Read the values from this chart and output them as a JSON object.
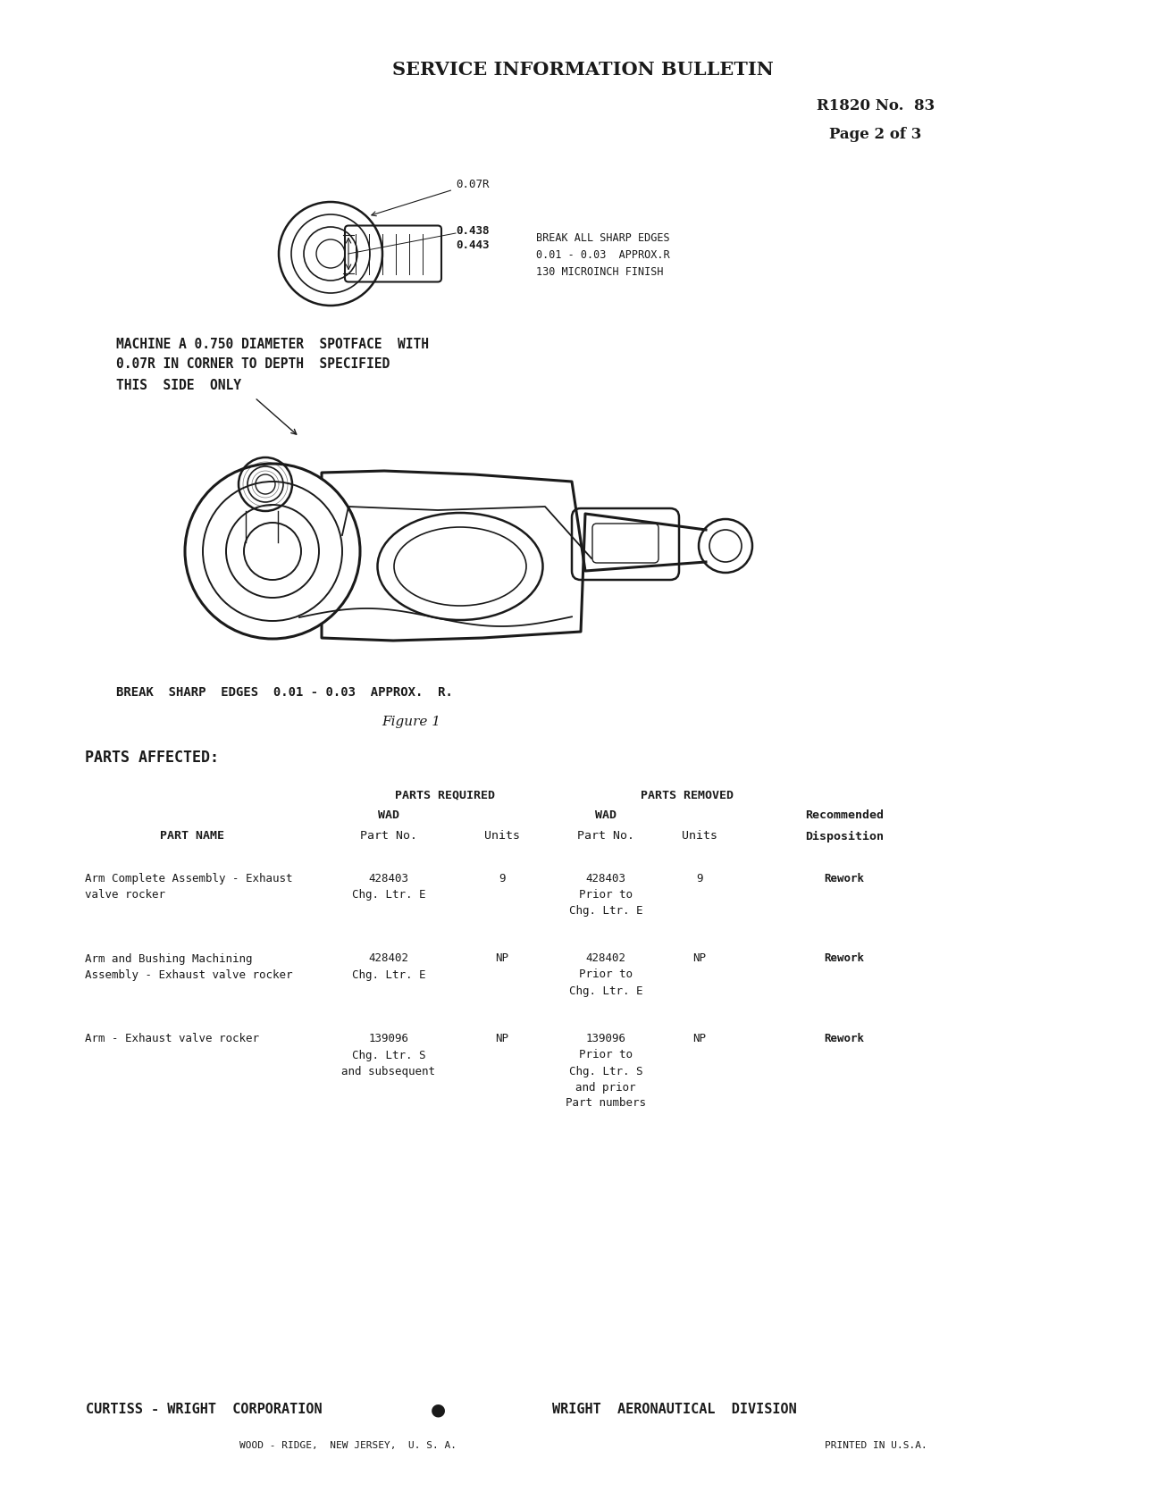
{
  "bg_color": "#ffffff",
  "text_color": "#1a1a1a",
  "title": "SERVICE INFORMATION BULLETIN",
  "bulletin_number": "R1820 No.  83",
  "page_info": "Page 2 of 3",
  "machine_note_line1": "MACHINE A 0.750 DIAMETER  SPOTFACE  WITH",
  "machine_note_line2": "0.07R IN CORNER TO DEPTH  SPECIFIED",
  "this_side": "THIS  SIDE  ONLY",
  "break_edges_bottom": "BREAK  SHARP  EDGES  0.01 - 0.03  APPROX.  R.",
  "figure_label": "Figure 1",
  "parts_affected_header": "PARTS AFFECTED:",
  "col_headers": {
    "parts_required": "PARTS REQUIRED",
    "wad_req": "WAD",
    "part_no_req": "Part No.",
    "units_req": "Units",
    "parts_removed": "PARTS REMOVED",
    "wad_rem": "WAD",
    "part_no_rem": "Part No.",
    "units_rem": "Units",
    "recommended": "Recommended",
    "disposition": "Disposition",
    "part_name": "PART NAME"
  },
  "dim_07r": "0.07R",
  "dim_438": "0.438",
  "dim_443": "0.443",
  "break_edges_note": "BREAK ALL SHARP EDGES\n0.01 - 0.03  APPROX.R\n130 MICROINCH FINISH",
  "footer_left": "CURTISS - WRIGHT  CORPORATION",
  "footer_bullet": "●",
  "footer_right": "WRIGHT  AERONAUTICAL  DIVISION",
  "footer_address": "WOOD - RIDGE,  NEW JERSEY,  U. S. A.",
  "footer_printed": "PRINTED IN U.S.A.",
  "rows": [
    {
      "part_name": "Arm Complete Assembly - Exhaust\n     valve rocker",
      "req_part_no": "428403\nChg. Ltr. E",
      "req_units": "9",
      "rem_part_no": "428403\nPrior to\nChg. Ltr. E",
      "rem_units": "9",
      "disposition": "Rework"
    },
    {
      "part_name": "Arm and Bushing Machining\n     Assembly - Exhaust valve rocker",
      "req_part_no": "428402\nChg. Ltr. E",
      "req_units": "NP",
      "rem_part_no": "428402\nPrior to\nChg. Ltr. E",
      "rem_units": "NP",
      "disposition": "Rework"
    },
    {
      "part_name": "Arm - Exhaust valve rocker",
      "req_part_no": "139096\nChg. Ltr. S\nand subsequent",
      "req_units": "NP",
      "rem_part_no": "139096\nPrior to\nChg. Ltr. S\nand prior\nPart numbers",
      "rem_units": "NP",
      "disposition": "Rework"
    }
  ]
}
